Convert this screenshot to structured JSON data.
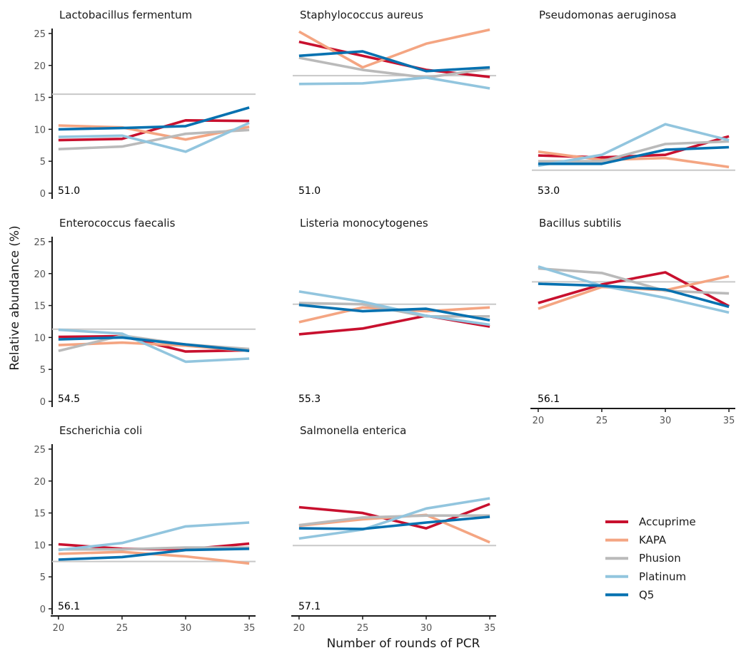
{
  "chart_data": {
    "type": "line",
    "xlabel": "Number of rounds of PCR",
    "ylabel": "Relative abundance (%)",
    "x": [
      20,
      25,
      30,
      35
    ],
    "x_ticks": [
      "20",
      "25",
      "30",
      "35"
    ],
    "y_ticks": [
      "0",
      "5",
      "10",
      "15",
      "20",
      "25"
    ],
    "xlim": [
      19.5,
      35.5
    ],
    "ylim": [
      0,
      26
    ],
    "legend_position": "bottom-right",
    "series_colors": {
      "Accuprime": "#c8102e",
      "KAPA": "#f4a582",
      "Phusion": "#bababa",
      "Platinum": "#92c5de",
      "Q5": "#0571b0"
    },
    "legend": [
      "Accuprime",
      "KAPA",
      "Phusion",
      "Platinum",
      "Q5"
    ],
    "panels": [
      {
        "title": "Lactobacillus fermentum",
        "gc_label": "51.0",
        "reference": 15.5,
        "series": [
          {
            "name": "Accuprime",
            "values": [
              8.3,
              8.5,
              11.4,
              11.3
            ]
          },
          {
            "name": "KAPA",
            "values": [
              10.6,
              10.3,
              8.4,
              10.4
            ]
          },
          {
            "name": "Phusion",
            "values": [
              6.9,
              7.3,
              9.3,
              9.9
            ]
          },
          {
            "name": "Platinum",
            "values": [
              8.8,
              9.0,
              6.5,
              11.0
            ]
          },
          {
            "name": "Q5",
            "values": [
              10.0,
              10.2,
              10.5,
              13.4
            ]
          }
        ]
      },
      {
        "title": "Staphylococcus aureus",
        "gc_label": "51.0",
        "reference": 18.4,
        "series": [
          {
            "name": "Accuprime",
            "values": [
              23.7,
              21.5,
              19.3,
              18.2
            ]
          },
          {
            "name": "KAPA",
            "values": [
              25.3,
              19.7,
              23.4,
              25.6
            ]
          },
          {
            "name": "Phusion",
            "values": [
              21.2,
              19.3,
              18.1,
              19.5
            ]
          },
          {
            "name": "Platinum",
            "values": [
              17.1,
              17.2,
              18.1,
              16.4
            ]
          },
          {
            "name": "Q5",
            "values": [
              21.5,
              22.2,
              19.1,
              19.7
            ]
          }
        ]
      },
      {
        "title": "Pseudomonas aeruginosa",
        "gc_label": "53.0",
        "reference": 3.6,
        "series": [
          {
            "name": "Accuprime",
            "values": [
              5.9,
              5.6,
              6.0,
              8.9
            ]
          },
          {
            "name": "KAPA",
            "values": [
              6.5,
              5.2,
              5.5,
              4.1
            ]
          },
          {
            "name": "Phusion",
            "values": [
              5.0,
              5.0,
              7.7,
              8.1
            ]
          },
          {
            "name": "Platinum",
            "values": [
              4.3,
              6.0,
              10.8,
              8.3
            ]
          },
          {
            "name": "Q5",
            "values": [
              4.6,
              4.6,
              6.8,
              7.2
            ]
          }
        ]
      },
      {
        "title": "Enterococcus faecalis",
        "gc_label": "54.5",
        "reference": 11.3,
        "series": [
          {
            "name": "Accuprime",
            "values": [
              10.1,
              10.2,
              7.8,
              8.0
            ]
          },
          {
            "name": "KAPA",
            "values": [
              8.8,
              9.2,
              8.7,
              7.9
            ]
          },
          {
            "name": "Phusion",
            "values": [
              7.9,
              10.3,
              8.9,
              8.2
            ]
          },
          {
            "name": "Platinum",
            "values": [
              11.2,
              10.6,
              6.2,
              6.7
            ]
          },
          {
            "name": "Q5",
            "values": [
              9.7,
              10.0,
              8.9,
              7.9
            ]
          }
        ]
      },
      {
        "title": "Listeria monocytogenes",
        "gc_label": "55.3",
        "reference": 15.2,
        "series": [
          {
            "name": "Accuprime",
            "values": [
              10.5,
              11.4,
              13.4,
              11.7
            ]
          },
          {
            "name": "KAPA",
            "values": [
              12.4,
              14.7,
              14.1,
              14.7
            ]
          },
          {
            "name": "Phusion",
            "values": [
              15.4,
              15.2,
              13.3,
              13.3
            ]
          },
          {
            "name": "Platinum",
            "values": [
              17.2,
              15.6,
              13.4,
              12.0
            ]
          },
          {
            "name": "Q5",
            "values": [
              15.1,
              14.1,
              14.5,
              12.7
            ]
          }
        ]
      },
      {
        "title": "Bacillus subtilis",
        "gc_label": "56.1",
        "reference": 18.7,
        "series": [
          {
            "name": "Accuprime",
            "values": [
              15.4,
              18.3,
              20.2,
              14.9
            ]
          },
          {
            "name": "KAPA",
            "values": [
              14.5,
              17.9,
              17.4,
              19.6
            ]
          },
          {
            "name": "Phusion",
            "values": [
              20.8,
              20.1,
              17.3,
              16.9
            ]
          },
          {
            "name": "Platinum",
            "values": [
              21.1,
              18.1,
              16.2,
              13.9
            ]
          },
          {
            "name": "Q5",
            "values": [
              18.4,
              18.1,
              17.5,
              14.8
            ]
          }
        ]
      },
      {
        "title": "Escherichia coli",
        "gc_label": "56.1",
        "reference": 7.4,
        "series": [
          {
            "name": "Accuprime",
            "values": [
              10.1,
              9.4,
              9.3,
              10.2
            ]
          },
          {
            "name": "KAPA",
            "values": [
              8.6,
              8.9,
              8.2,
              7.1
            ]
          },
          {
            "name": "Phusion",
            "values": [
              9.3,
              9.3,
              9.6,
              9.6
            ]
          },
          {
            "name": "Platinum",
            "values": [
              9.2,
              10.3,
              12.9,
              13.5
            ]
          },
          {
            "name": "Q5",
            "values": [
              7.7,
              8.1,
              9.2,
              9.4
            ]
          }
        ]
      },
      {
        "title": "Salmonella enterica",
        "gc_label": "57.1",
        "reference": 9.9,
        "series": [
          {
            "name": "Accuprime",
            "values": [
              15.9,
              15.0,
              12.6,
              16.4
            ]
          },
          {
            "name": "KAPA",
            "values": [
              13.0,
              14.0,
              14.7,
              10.4
            ]
          },
          {
            "name": "Phusion",
            "values": [
              13.1,
              14.3,
              14.6,
              14.6
            ]
          },
          {
            "name": "Platinum",
            "values": [
              11.0,
              12.4,
              15.7,
              17.3
            ]
          },
          {
            "name": "Q5",
            "values": [
              12.6,
              12.5,
              13.5,
              14.4
            ]
          }
        ]
      }
    ]
  }
}
